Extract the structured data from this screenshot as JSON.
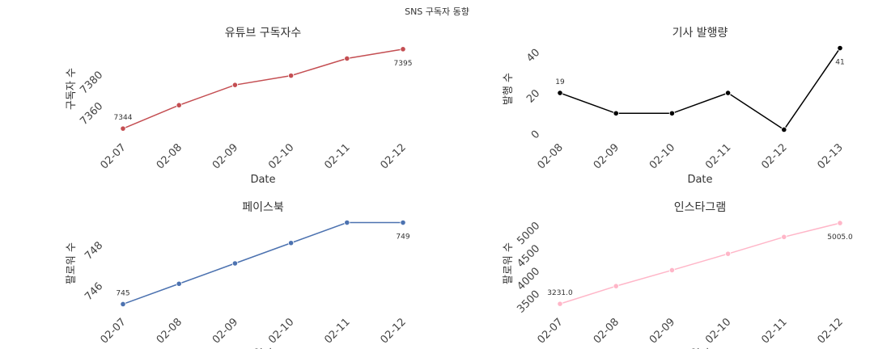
{
  "figure_title": "SNS 구독자 동향",
  "chart_data": [
    {
      "type": "line",
      "title": "유튜브 구독자수",
      "xlabel": "Date",
      "ylabel": "구독자 수",
      "categories": [
        "02-07",
        "02-08",
        "02-09",
        "02-10",
        "02-11",
        "02-12"
      ],
      "values": [
        7344,
        7359,
        7372,
        7378,
        7389,
        7395
      ],
      "yticks": [
        7360,
        7380
      ],
      "ylim": [
        7342,
        7397
      ],
      "color": "#c44e52",
      "annotations": [
        {
          "index": 0,
          "text": "7344",
          "pos": "above"
        },
        {
          "index": 5,
          "text": "7395",
          "pos": "below"
        }
      ]
    },
    {
      "type": "line",
      "title": "기사 발행량",
      "xlabel": "Date",
      "ylabel": "발행 수",
      "categories": [
        "02-08",
        "02-09",
        "02-10",
        "02-11",
        "02-12",
        "02-13"
      ],
      "values": [
        19,
        9,
        9,
        19,
        1,
        41
      ],
      "yticks": [
        0,
        20,
        40
      ],
      "ylim": [
        0,
        42
      ],
      "color": "#000000",
      "annotations": [
        {
          "index": 0,
          "text": "19",
          "pos": "above"
        },
        {
          "index": 5,
          "text": "41",
          "pos": "below"
        }
      ]
    },
    {
      "type": "line",
      "title": "페이스북",
      "xlabel": "일자",
      "ylabel": "팔로워 수",
      "categories": [
        "02-07",
        "02-08",
        "02-09",
        "02-10",
        "02-11",
        "02-12"
      ],
      "values": [
        745,
        746,
        747,
        748,
        749,
        749
      ],
      "yticks": [
        746,
        748
      ],
      "ylim": [
        744.9,
        749.1
      ],
      "color": "#4c72b0",
      "annotations": [
        {
          "index": 0,
          "text": "745",
          "pos": "above"
        },
        {
          "index": 5,
          "text": "749",
          "pos": "below"
        }
      ]
    },
    {
      "type": "line",
      "title": "인스타그램",
      "xlabel": "일자",
      "ylabel": "팔로워 수",
      "categories": [
        "02-07",
        "02-08",
        "02-09",
        "02-10",
        "02-11",
        "02-12"
      ],
      "values": [
        3231.0,
        3620,
        3970,
        4330,
        4700,
        5005.0
      ],
      "yticks": [
        3500,
        4000,
        4500,
        5000
      ],
      "ylim": [
        3180,
        5060
      ],
      "color": "#ffb6c8",
      "annotations": [
        {
          "index": 0,
          "text": "3231.0",
          "pos": "above"
        },
        {
          "index": 5,
          "text": "5005.0",
          "pos": "below"
        }
      ]
    }
  ]
}
